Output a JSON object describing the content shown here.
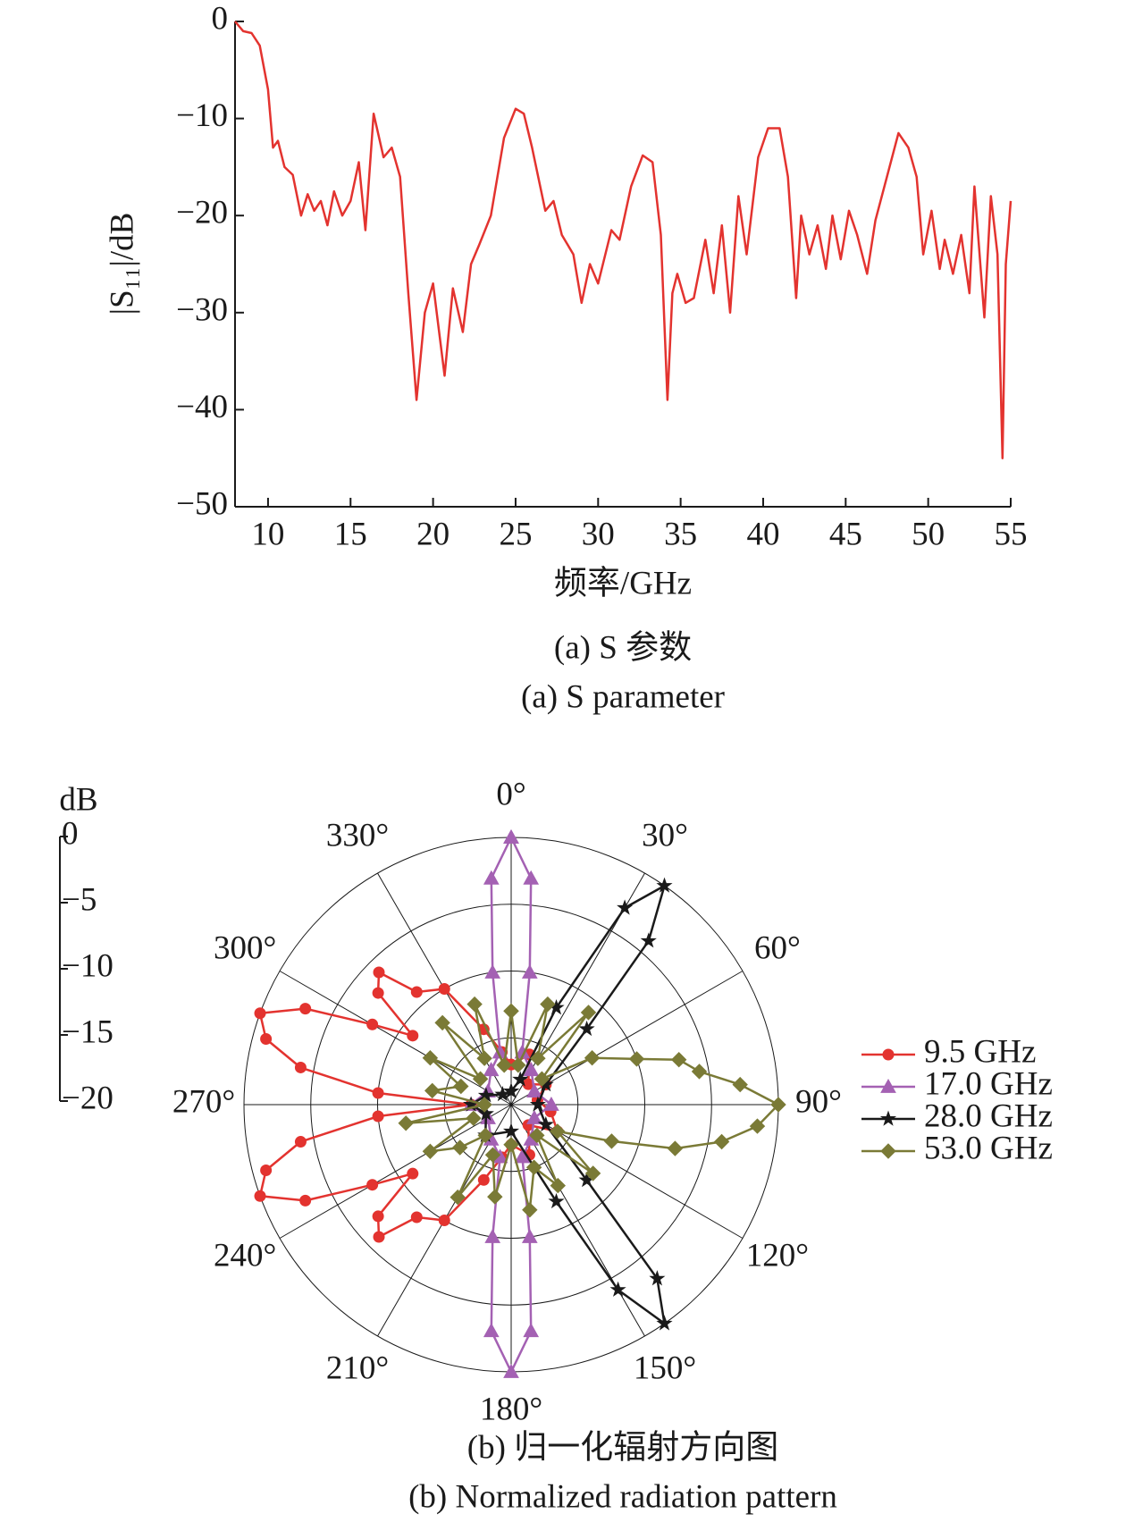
{
  "chart_data": [
    {
      "type": "line",
      "x_label": "频率/GHz",
      "y_label": "|S₁₁|/dB",
      "caption": [
        "(a) S 参数",
        "(a) S parameter"
      ],
      "color": "#e3332f",
      "xlim": [
        8,
        55
      ],
      "ylim": [
        -50,
        0
      ],
      "xticks": [
        10,
        15,
        20,
        25,
        30,
        35,
        40,
        45,
        50,
        55
      ],
      "yticks": [
        0,
        {
          "value": -10,
          "label": "−10"
        },
        {
          "value": -20,
          "label": "−20"
        },
        {
          "value": -30,
          "label": "−30"
        },
        {
          "value": -40,
          "label": "−40"
        },
        {
          "value": -50,
          "label": "−50"
        }
      ],
      "x": [
        8,
        8.5,
        9,
        9.5,
        10,
        10.3,
        10.6,
        11,
        11.5,
        12,
        12.4,
        12.8,
        13.2,
        13.6,
        14,
        14.5,
        15,
        15.5,
        15.9,
        16.4,
        17,
        17.5,
        18,
        18.5,
        19,
        19.5,
        20,
        20.7,
        21.2,
        21.8,
        22.3,
        22.8,
        23.5,
        24.3,
        25,
        25.5,
        26,
        26.8,
        27.3,
        27.8,
        28.5,
        29,
        29.5,
        30,
        30.8,
        31.3,
        32,
        32.7,
        33.3,
        33.8,
        34.2,
        34.5,
        34.8,
        35.3,
        35.8,
        36.5,
        37,
        37.5,
        38,
        38.5,
        39,
        39.7,
        40.3,
        41,
        41.5,
        42,
        42.3,
        42.8,
        43.3,
        43.8,
        44.2,
        44.7,
        45.2,
        45.7,
        46.3,
        46.8,
        47.5,
        48.2,
        48.8,
        49.3,
        49.7,
        50.2,
        50.7,
        51,
        51.5,
        52,
        52.5,
        52.8,
        53.4,
        53.8,
        54.2,
        54.5,
        54.7,
        55
      ],
      "values": [
        0,
        -1,
        -1.2,
        -2.5,
        -7,
        -13,
        -12.3,
        -15,
        -15.8,
        -20,
        -17.8,
        -19.5,
        -18.5,
        -21,
        -17.5,
        -20,
        -18.5,
        -14.5,
        -21.5,
        -9.5,
        -14,
        -13,
        -16,
        -28,
        -39,
        -30,
        -27,
        -36.5,
        -27.5,
        -32,
        -25,
        -23,
        -20,
        -12,
        -9,
        -9.5,
        -13,
        -19.5,
        -18.5,
        -22,
        -24,
        -29,
        -25,
        -27,
        -21.5,
        -22.5,
        -17,
        -13.8,
        -14.5,
        -22,
        -39,
        -28,
        -26,
        -29,
        -28.5,
        -22.5,
        -28,
        -21,
        -30,
        -18,
        -24,
        -14,
        -11,
        -11,
        -16,
        -28.5,
        -20,
        -24,
        -21,
        -25.5,
        -20,
        -24.5,
        -19.5,
        -22,
        -26,
        -20.5,
        -16,
        -11.5,
        -13,
        -16,
        -24,
        -19.5,
        -25.5,
        -22.5,
        -26,
        -22,
        -28,
        -17,
        -30.5,
        -18,
        -24,
        -45,
        -25,
        -18.5
      ]
    },
    {
      "type": "polar",
      "caption": [
        "(b) 归一化辐射方向图",
        "(b) Normalized radiation pattern"
      ],
      "r_label": "dB",
      "rlim": [
        -20,
        0
      ],
      "rticks": [
        0,
        {
          "value": -5,
          "label": "−5"
        },
        {
          "value": -10,
          "label": "−10"
        },
        {
          "value": -15,
          "label": "−15"
        },
        {
          "value": -20,
          "label": "−20"
        }
      ],
      "theta_ticks": [
        {
          "value": 0,
          "label": "0°"
        },
        {
          "value": 30,
          "label": "30°"
        },
        {
          "value": 60,
          "label": "60°"
        },
        {
          "value": 90,
          "label": "90°"
        },
        {
          "value": 120,
          "label": "120°"
        },
        {
          "value": 150,
          "label": "150°"
        },
        {
          "value": 180,
          "label": "180°"
        },
        {
          "value": 210,
          "label": "210°"
        },
        {
          "value": 240,
          "label": "240°"
        },
        {
          "value": 270,
          "label": "270°"
        },
        {
          "value": 300,
          "label": "300°"
        },
        {
          "value": 330,
          "label": "330°"
        }
      ],
      "legend": "right",
      "series": [
        {
          "name": "9.5 GHz",
          "color": "#e3332f",
          "marker": "circle",
          "theta": [
            0,
            20,
            40,
            60,
            80,
            100,
            120,
            140,
            160,
            180,
            190,
            200,
            210,
            220,
            225,
            230,
            235,
            240,
            245,
            250,
            255,
            260,
            265,
            270,
            275,
            280,
            285,
            290,
            295,
            300,
            305,
            310,
            315,
            320,
            330,
            340,
            350,
            360
          ],
          "values": [
            -17,
            -16,
            -18,
            -17,
            -18,
            -17,
            -16,
            -18,
            -16,
            -17,
            -16,
            -14,
            -10,
            -9,
            -6,
            -7,
            -11,
            -8,
            -3,
            0,
            -1,
            -4,
            -10,
            -17,
            -10,
            -4,
            -1,
            0,
            -3,
            -8,
            -11,
            -7,
            -6,
            -9,
            -10,
            -14,
            -16,
            -17
          ]
        },
        {
          "name": "17.0 GHz",
          "color": "#a461b3",
          "marker": "triangle",
          "theta": [
            0,
            5,
            8,
            12,
            30,
            60,
            90,
            120,
            150,
            168,
            172,
            175,
            180,
            185,
            188,
            192,
            210,
            240,
            270,
            300,
            330,
            348,
            352,
            355,
            360
          ],
          "values": [
            0,
            -3,
            -10,
            -16,
            -17,
            -18,
            -17,
            -18,
            -17,
            -16,
            -10,
            -3,
            0,
            -3,
            -10,
            -16,
            -17,
            -18,
            -17,
            -18,
            -17,
            -16,
            -10,
            -3,
            0
          ]
        },
        {
          "name": "28.0 GHz",
          "color": "#1a1a1a",
          "marker": "star",
          "theta": [
            0,
            20,
            25,
            30,
            35,
            40,
            45,
            60,
            90,
            120,
            135,
            140,
            145,
            150,
            155,
            180,
            220,
            250,
            270,
            290,
            320,
            360
          ],
          "values": [
            -19,
            -18,
            -12,
            -3,
            0,
            -4,
            -12,
            -17,
            -18,
            -17,
            -12,
            -3,
            0,
            -4,
            -12,
            -18,
            -17,
            -18,
            -17,
            -18,
            -19,
            -19
          ],
          "unused": null
        },
        {
          "name": "53.0 GHz",
          "color": "#7a7a36",
          "marker": "diamond",
          "theta": [
            0,
            10,
            20,
            30,
            40,
            50,
            60,
            70,
            75,
            80,
            85,
            90,
            95,
            100,
            105,
            110,
            120,
            130,
            140,
            150,
            160,
            170,
            180,
            190,
            200,
            210,
            220,
            230,
            240,
            250,
            260,
            270,
            280,
            290,
            300,
            310,
            320,
            330,
            340,
            350,
            360
          ],
          "values": [
            -13,
            -17,
            -12,
            -16,
            -11,
            -17,
            -13,
            -10,
            -7,
            -5.7,
            -2.8,
            0,
            -1.5,
            -4,
            -7.3,
            -12,
            -16,
            -12,
            -17,
            -13,
            -15,
            -12,
            -17,
            -13,
            -16,
            -12,
            -17,
            -15,
            -13,
            -17,
            -12,
            -18,
            -14,
            -16,
            -13,
            -17,
            -12,
            -16,
            -12,
            -17,
            -13
          ]
        }
      ]
    }
  ]
}
